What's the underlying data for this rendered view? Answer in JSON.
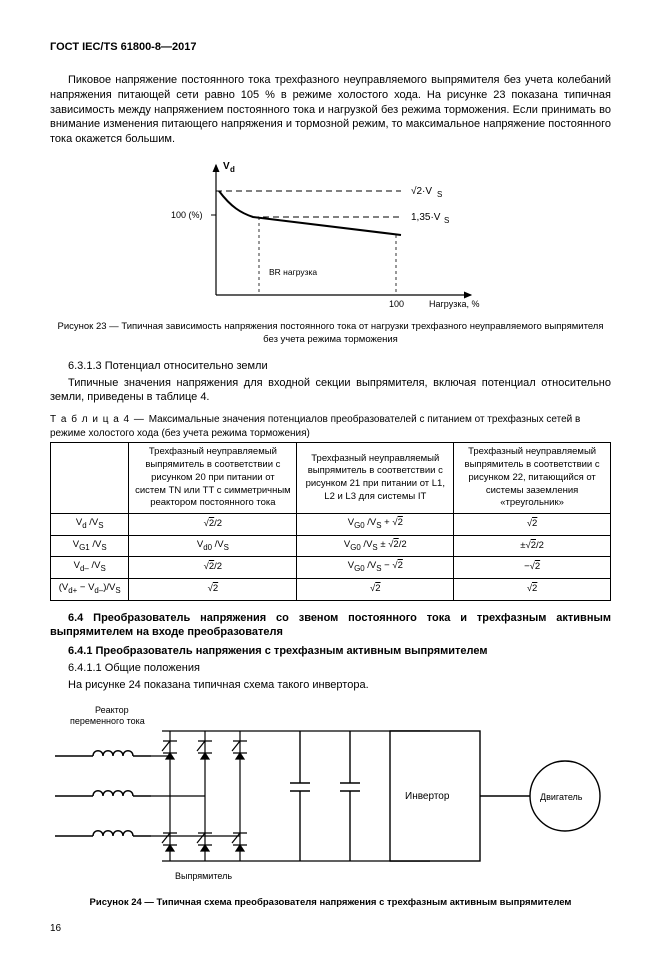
{
  "header": "ГОСТ IEC/TS 61800-8—2017",
  "para1": "Пиковое напряжение постоянного тока трехфазного неуправляемого выпрямителя без учета колебаний напряжения питающей сети равно 105 % в режиме холостого хода. На рисунке 23 показана типичная зависимость между напряжением постоянного тока и нагрузкой без режима торможения. Если принимать во внимание изменения питающего напряжения и тормозной режим, то максимальное напряжение постоянного тока окажется большим.",
  "chart23": {
    "y_axis_label": "Vd",
    "y_tick_label": "100 (%)",
    "x_max_label": "100",
    "x_axis_label": "Нагрузка, %",
    "top_annotation": "√2·VS",
    "mid_annotation": "1,35·VS",
    "inner_label": "BR нагрузка",
    "line_color": "#000000",
    "curve": {
      "type": "line-chart-sketch"
    },
    "caption": "Рисунок 23 — Типичная зависимость напряжения постоянного тока от нагрузки трехфазного неуправляемого выпрямителя без учета режима торможения"
  },
  "para_6313_head": "6.3.1.3  Потенциал относительно земли",
  "para_6313_body": "Типичные значения напряжения для входной секции выпрямителя, включая потенциал относительно земли, приведены в таблице 4.",
  "table4": {
    "caption_prefix": "Т а б л и ц а  4  —  ",
    "caption_text": "Максимальные значения потенциалов преобразователей с питанием от трехфазных сетей в режиме холостого хода (без учета режима торможения)",
    "columns": [
      "",
      "Трехфазный неуправляемый выпрямитель в соответствии с рисунком 20 при питании от систем TN или TT с симметричным реактором постоянного тока",
      "Трехфазный неуправляемый выпрямитель в соответствии с рисунком 21 при питании от L1, L2 и L3 для системы IT",
      "Трехфазный неуправляемый выпрямитель в соответствии с рисунком 22, питающийся от системы заземления «треугольник»"
    ],
    "rows_plain": [
      [
        "Vd /VS",
        "√2/2",
        "VG0 /VS + √2",
        "√2"
      ],
      [
        "VG1 /VS",
        "Vd0 /VS",
        "VG0 /VS ± √2/2",
        "±√2/2"
      ],
      [
        "Vd– /VS",
        "√2/2",
        "VG0 /VS − √2",
        "−√2"
      ],
      [
        "(Vd+ − Vd–)/VS",
        "√2",
        "√2",
        "√2"
      ]
    ],
    "rows": [
      {
        "c0": {
          "pre": "V",
          "sub1": "d",
          "mid": " /V",
          "sub2": "S"
        },
        "c1": {
          "sqrt": "2",
          "post": "/2"
        },
        "c2": {
          "pre": "V",
          "sub1": "G0",
          "mid": " /V",
          "sub2": "S",
          "post": " + ",
          "sqrt": "2"
        },
        "c3": {
          "sqrt": "2"
        }
      },
      {
        "c0": {
          "pre": "V",
          "sub1": "G1",
          "mid": " /V",
          "sub2": "S"
        },
        "c1": {
          "pre": "V",
          "sub1": "d0",
          "mid": " /V",
          "sub2": "S"
        },
        "c2": {
          "pre": "V",
          "sub1": "G0",
          "mid": " /V",
          "sub2": "S",
          "post": " ± ",
          "sqrt": "2",
          "tail": "/2"
        },
        "c3": {
          "pre": "±",
          "sqrt": "2",
          "post": "/2"
        }
      },
      {
        "c0": {
          "pre": "V",
          "sub1": "d–",
          "mid": " /V",
          "sub2": "S"
        },
        "c1": {
          "sqrt": "2",
          "post": "/2"
        },
        "c2": {
          "pre": "V",
          "sub1": "G0",
          "mid": " /V",
          "sub2": "S",
          "post": " − ",
          "sqrt": "2"
        },
        "c3": {
          "pre": "−",
          "sqrt": "2"
        }
      },
      {
        "c0": {
          "raw": "(V",
          "sub1": "d+",
          "mid": " − V",
          "sub2": "d–",
          "post": ")/V",
          "sub3": "S"
        },
        "c1": {
          "sqrt": "2"
        },
        "c2": {
          "sqrt": "2"
        },
        "c3": {
          "sqrt": "2"
        }
      }
    ]
  },
  "sec64": "6.4  Преобразователь напряжения со звеном постоянного тока и трехфазным активным выпрямителем на входе преобразователя",
  "sec641": "6.4.1  Преобразователь напряжения с трехфазным активным выпрямителем",
  "sec6411": "6.4.1.1  Общие положения",
  "sec6411_body": "На рисунке 24 показана типичная схема такого инвертора.",
  "diagram24": {
    "label_reactor": "Реактор переменного тока",
    "label_rectifier": "Выпрямитель",
    "label_inverter": "Инвертор",
    "label_motor": "Двигатель",
    "caption": "Рисунок 24 — Типичная схема преобразователя напряжения с трехфазным активным выпрямителем"
  },
  "page_number": "16"
}
